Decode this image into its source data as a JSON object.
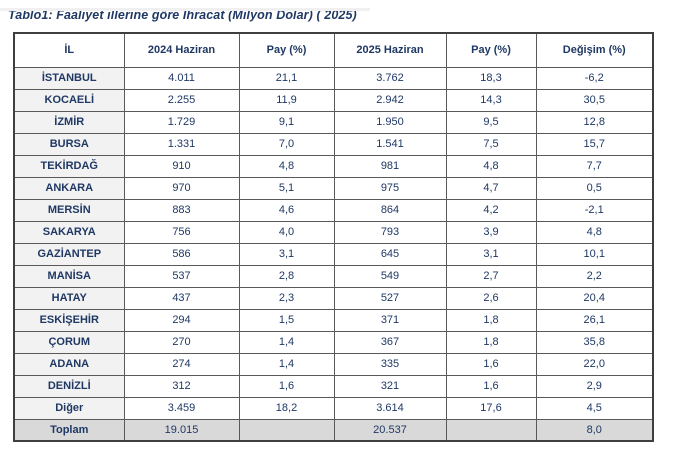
{
  "title": "Tablo1: Faaliyet illerine göre İhracat (Milyon Dolar) ( 2025)",
  "colors": {
    "text_navy": "#1f3864",
    "il_column_bg": "#f2f2f2",
    "total_row_bg": "#d9d9d9",
    "border": "#595959"
  },
  "table": {
    "columns": [
      "İL",
      "2024 Haziran",
      "Pay (%)",
      "2025 Haziran",
      "Pay (%)",
      "Değişim (%)"
    ],
    "rows": [
      [
        "İSTANBUL",
        "4.011",
        "21,1",
        "3.762",
        "18,3",
        "-6,2"
      ],
      [
        "KOCAELİ",
        "2.255",
        "11,9",
        "2.942",
        "14,3",
        "30,5"
      ],
      [
        "İZMİR",
        "1.729",
        "9,1",
        "1.950",
        "9,5",
        "12,8"
      ],
      [
        "BURSA",
        "1.331",
        "7,0",
        "1.541",
        "7,5",
        "15,7"
      ],
      [
        "TEKİRDAĞ",
        "910",
        "4,8",
        "981",
        "4,8",
        "7,7"
      ],
      [
        "ANKARA",
        "970",
        "5,1",
        "975",
        "4,7",
        "0,5"
      ],
      [
        "MERSİN",
        "883",
        "4,6",
        "864",
        "4,2",
        "-2,1"
      ],
      [
        "SAKARYA",
        "756",
        "4,0",
        "793",
        "3,9",
        "4,8"
      ],
      [
        "GAZİANTEP",
        "586",
        "3,1",
        "645",
        "3,1",
        "10,1"
      ],
      [
        "MANİSA",
        "537",
        "2,8",
        "549",
        "2,7",
        "2,2"
      ],
      [
        "HATAY",
        "437",
        "2,3",
        "527",
        "2,6",
        "20,4"
      ],
      [
        "ESKİŞEHİR",
        "294",
        "1,5",
        "371",
        "1,8",
        "26,1"
      ],
      [
        "ÇORUM",
        "270",
        "1,4",
        "367",
        "1,8",
        "35,8"
      ],
      [
        "ADANA",
        "274",
        "1,4",
        "335",
        "1,6",
        "22,0"
      ],
      [
        "DENİZLİ",
        "312",
        "1,6",
        "321",
        "1,6",
        "2,9"
      ],
      [
        "Diğer",
        "3.459",
        "18,2",
        "3.614",
        "17,6",
        "4,5"
      ]
    ],
    "total_row": [
      "Toplam",
      "19.015",
      "",
      "20.537",
      "",
      "8,0"
    ]
  }
}
